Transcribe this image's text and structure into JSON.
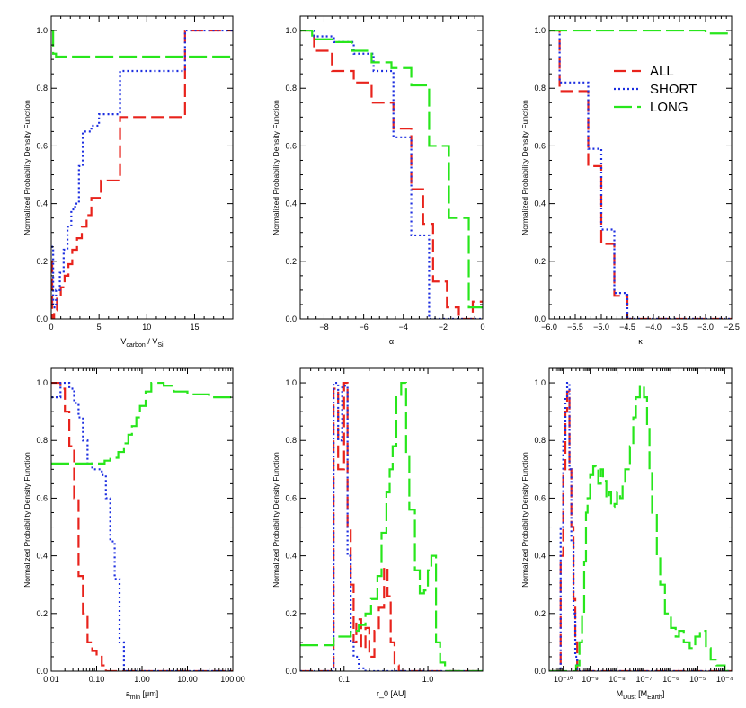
{
  "colors": {
    "ALL": "#e8231c",
    "SHORT": "#1c2ee0",
    "LONG": "#28e61c"
  },
  "legend": {
    "entries": [
      "ALL",
      "SHORT",
      "LONG"
    ],
    "placement": "top-right of top-right panel"
  },
  "chart_data": [
    {
      "type": "line",
      "step": true,
      "xscale": "linear",
      "title": "",
      "xlabel": "V_carbon / V_Si",
      "ylabel": "Normalized Probability Density Function",
      "xlim": [
        0,
        19
      ],
      "ylim": [
        0,
        1.05
      ],
      "xticks": [
        0,
        5,
        10,
        15
      ],
      "xticklabels": [
        "0",
        "5",
        "10",
        "15"
      ],
      "yticks": [
        0,
        0.2,
        0.4,
        0.6,
        0.8,
        1.0
      ],
      "yticklabels": [
        "0.0",
        "0.2",
        "0.4",
        "0.6",
        "0.8",
        "1.0"
      ],
      "series": [
        {
          "name": "ALL",
          "x": [
            0,
            0.1,
            0.3,
            0.6,
            1.0,
            1.4,
            1.8,
            2.2,
            2.7,
            3.2,
            3.7,
            4.2,
            5.2,
            6.2,
            7.2,
            14.0,
            19.0
          ],
          "y": [
            0.2,
            0.0,
            0.03,
            0.07,
            0.11,
            0.15,
            0.19,
            0.24,
            0.28,
            0.32,
            0.36,
            0.42,
            0.48,
            0.48,
            0.7,
            1.0,
            1.0
          ]
        },
        {
          "name": "SHORT",
          "x": [
            0,
            0.2,
            0.5,
            0.9,
            1.3,
            1.7,
            2.1,
            2.5,
            2.9,
            3.3,
            3.7,
            4.2,
            5.0,
            5.8,
            7.2,
            14.0,
            19.0
          ],
          "y": [
            0.25,
            0.04,
            0.1,
            0.16,
            0.24,
            0.32,
            0.38,
            0.4,
            0.53,
            0.65,
            0.65,
            0.67,
            0.71,
            0.71,
            0.86,
            1.0,
            1.0
          ]
        },
        {
          "name": "LONG",
          "x": [
            0,
            0.2,
            0.5,
            1.0,
            2.0,
            4.0,
            19.0
          ],
          "y": [
            1.0,
            0.92,
            0.91,
            0.91,
            0.91,
            0.91,
            0.91
          ]
        }
      ]
    },
    {
      "type": "line",
      "step": true,
      "xscale": "linear",
      "title": "",
      "xlabel": "α",
      "ylabel": "Normalized Probability Density Function",
      "xlim": [
        -9.2,
        0
      ],
      "ylim": [
        0,
        1.05
      ],
      "xticks": [
        -8,
        -6,
        -4,
        -2,
        0
      ],
      "xticklabels": [
        "−8",
        "−6",
        "−4",
        "−2",
        "0"
      ],
      "yticks": [
        0,
        0.2,
        0.4,
        0.6,
        0.8,
        1.0
      ],
      "yticklabels": [
        "0.0",
        "0.2",
        "0.4",
        "0.6",
        "0.8",
        "1.0"
      ],
      "series": [
        {
          "name": "ALL",
          "x": [
            -9.2,
            -8.5,
            -7.6,
            -6.5,
            -5.6,
            -4.5,
            -3.6,
            -3.0,
            -2.5,
            -1.8,
            -1.2,
            -0.5,
            0
          ],
          "y": [
            1.0,
            0.93,
            0.86,
            0.82,
            0.75,
            0.66,
            0.45,
            0.33,
            0.13,
            0.04,
            0.0,
            0.06,
            0.06
          ]
        },
        {
          "name": "SHORT",
          "x": [
            -9.2,
            -8.5,
            -7.5,
            -6.5,
            -5.5,
            -4.5,
            -3.6,
            -2.7,
            -1.8,
            0
          ],
          "y": [
            1.0,
            0.98,
            0.96,
            0.92,
            0.86,
            0.63,
            0.29,
            0.0,
            0.0,
            0.0
          ]
        },
        {
          "name": "LONG",
          "x": [
            -9.2,
            -8.6,
            -7.6,
            -6.6,
            -5.6,
            -4.6,
            -3.6,
            -2.7,
            -1.7,
            -0.7,
            0
          ],
          "y": [
            1.0,
            0.97,
            0.96,
            0.93,
            0.89,
            0.87,
            0.81,
            0.6,
            0.35,
            0.04,
            0.04
          ]
        }
      ]
    },
    {
      "type": "line",
      "step": true,
      "xscale": "linear",
      "title": "",
      "xlabel": "κ",
      "ylabel": "",
      "xlim": [
        -6.0,
        -2.5
      ],
      "ylim": [
        0,
        1.05
      ],
      "xticks": [
        -6.0,
        -5.5,
        -5.0,
        -4.5,
        -4.0,
        -3.5,
        -3.0,
        -2.5
      ],
      "xticklabels": [
        "−6.0",
        "−5.5",
        "−5.0",
        "−4.5",
        "−4.0",
        "−3.5",
        "−3.0",
        "−2.5"
      ],
      "yticks": [
        0,
        0.2,
        0.4,
        0.6,
        0.8,
        1.0
      ],
      "yticklabels": [
        "0.0",
        "0.2",
        "0.4",
        "0.6",
        "0.8",
        "1.0"
      ],
      "series": [
        {
          "name": "ALL",
          "x": [
            -6.0,
            -5.8,
            -5.5,
            -5.25,
            -5.0,
            -4.75,
            -4.5,
            -4.25,
            -4.0,
            -2.5
          ],
          "y": [
            1.0,
            0.79,
            0.79,
            0.53,
            0.26,
            0.08,
            0.0,
            0.0,
            0.0,
            0.0
          ]
        },
        {
          "name": "SHORT",
          "x": [
            -6.0,
            -5.8,
            -5.5,
            -5.25,
            -5.0,
            -4.75,
            -4.5,
            -4.25,
            -4.0,
            -2.5
          ],
          "y": [
            1.0,
            0.82,
            0.82,
            0.59,
            0.31,
            0.09,
            0.0,
            0.0,
            0.0,
            0.0
          ]
        },
        {
          "name": "LONG",
          "x": [
            -6.0,
            -4.5,
            -3.0,
            -2.5
          ],
          "y": [
            1.0,
            1.0,
            0.99,
            0.99
          ]
        }
      ]
    },
    {
      "type": "line",
      "step": true,
      "xscale": "log",
      "title": "",
      "xlabel": "a_min [μm]",
      "ylabel": "Normalized Probability Density Function",
      "xlim": [
        0.01,
        100
      ],
      "ylim": [
        0,
        1.05
      ],
      "xticks": [
        0.01,
        0.1,
        1,
        10,
        100
      ],
      "xticklabels": [
        "0.01",
        "0.10",
        "1.00",
        "10.00",
        "100.00"
      ],
      "yticks": [
        0,
        0.2,
        0.4,
        0.6,
        0.8,
        1.0
      ],
      "yticklabels": [
        "0.0",
        "0.2",
        "0.4",
        "0.6",
        "0.8",
        "1.0"
      ],
      "series": [
        {
          "name": "ALL",
          "x": [
            0.01,
            0.013,
            0.016,
            0.02,
            0.025,
            0.032,
            0.04,
            0.05,
            0.063,
            0.08,
            0.1,
            0.13,
            0.16,
            0.2,
            0.32,
            100
          ],
          "y": [
            1.0,
            1.0,
            0.98,
            0.9,
            0.78,
            0.6,
            0.33,
            0.2,
            0.1,
            0.07,
            0.05,
            0.02,
            0.0,
            0.0,
            0.0,
            0.0
          ]
        },
        {
          "name": "SHORT",
          "x": [
            0.01,
            0.016,
            0.025,
            0.032,
            0.04,
            0.05,
            0.063,
            0.08,
            0.1,
            0.13,
            0.16,
            0.2,
            0.25,
            0.32,
            0.4,
            100
          ],
          "y": [
            0.95,
            1.0,
            0.98,
            0.93,
            0.88,
            0.8,
            0.72,
            0.7,
            0.7,
            0.68,
            0.6,
            0.45,
            0.32,
            0.1,
            0.0,
            0.0
          ]
        },
        {
          "name": "LONG",
          "x": [
            0.01,
            0.05,
            0.1,
            0.15,
            0.2,
            0.3,
            0.4,
            0.5,
            0.6,
            0.75,
            0.9,
            1.2,
            1.6,
            2.0,
            3.0,
            5.0,
            10,
            30,
            100
          ],
          "y": [
            0.72,
            0.72,
            0.72,
            0.73,
            0.74,
            0.76,
            0.79,
            0.82,
            0.85,
            0.88,
            0.92,
            0.97,
            1.0,
            1.0,
            0.99,
            0.97,
            0.96,
            0.95,
            0.94
          ]
        }
      ]
    },
    {
      "type": "line",
      "step": true,
      "xscale": "log",
      "title": "",
      "xlabel": "r_0 [AU]",
      "ylabel": "Normalized Probability Density Function",
      "xlim": [
        0.03,
        4.5
      ],
      "ylim": [
        0,
        1.05
      ],
      "xticks": [
        0.1,
        1.0
      ],
      "xticklabels": [
        "0.1",
        "1.0"
      ],
      "yticks": [
        0,
        0.2,
        0.4,
        0.6,
        0.8,
        1.0
      ],
      "yticklabels": [
        "0.0",
        "0.2",
        "0.4",
        "0.6",
        "0.8",
        "1.0"
      ],
      "series": [
        {
          "name": "ALL",
          "x": [
            0.03,
            0.075,
            0.085,
            0.1,
            0.11,
            0.12,
            0.13,
            0.14,
            0.16,
            0.18,
            0.2,
            0.23,
            0.26,
            0.3,
            0.33,
            0.36,
            0.4,
            0.45,
            4.5
          ],
          "y": [
            0.0,
            0.98,
            0.7,
            1.0,
            0.5,
            0.3,
            0.1,
            0.18,
            0.08,
            0.15,
            0.05,
            0.14,
            0.22,
            0.36,
            0.26,
            0.1,
            0.02,
            0.0,
            0.0
          ]
        },
        {
          "name": "SHORT",
          "x": [
            0.03,
            0.075,
            0.085,
            0.095,
            0.11,
            0.12,
            0.13,
            0.15,
            0.18,
            4.5
          ],
          "y": [
            0.0,
            1.0,
            0.8,
            0.99,
            0.4,
            0.1,
            0.05,
            0.01,
            0.0,
            0.0
          ]
        },
        {
          "name": "LONG",
          "x": [
            0.03,
            0.075,
            0.12,
            0.15,
            0.18,
            0.21,
            0.25,
            0.28,
            0.32,
            0.35,
            0.38,
            0.42,
            0.48,
            0.55,
            0.6,
            0.7,
            0.8,
            0.9,
            1.0,
            1.1,
            1.25,
            1.4,
            1.6,
            2.0,
            4.5
          ],
          "y": [
            0.09,
            0.12,
            0.14,
            0.16,
            0.2,
            0.25,
            0.33,
            0.48,
            0.62,
            0.7,
            0.78,
            0.95,
            1.0,
            0.75,
            0.56,
            0.35,
            0.27,
            0.28,
            0.35,
            0.4,
            0.1,
            0.03,
            0.0,
            0.0,
            0.0
          ]
        }
      ]
    },
    {
      "type": "line",
      "step": true,
      "xscale": "log",
      "title": "",
      "xlabel": "M_Dust [M_Earth]",
      "ylabel": "",
      "xlim": [
        3e-11,
        0.00018
      ],
      "ylim": [
        0,
        1.05
      ],
      "xticks": [
        1e-10,
        1e-09,
        1e-08,
        1e-07,
        1e-06,
        1e-05,
        0.0001
      ],
      "xticklabels": [
        "10⁻¹⁰",
        "10⁻⁹",
        "10⁻⁸",
        "10⁻⁷",
        "10⁻⁶",
        "10⁻⁵",
        "10⁻⁴"
      ],
      "yticks": [
        0,
        0.2,
        0.4,
        0.6,
        0.8,
        1.0
      ],
      "yticklabels": [
        "0.0",
        "0.2",
        "0.4",
        "0.6",
        "0.8",
        "1.0"
      ],
      "series": [
        {
          "name": "ALL",
          "x": [
            3e-11,
            8e-11,
            1e-10,
            1.2e-10,
            1.4e-10,
            1.7e-10,
            2e-10,
            2.4e-10,
            2.8e-10,
            3.3e-10,
            3e-09,
            0.00018
          ],
          "y": [
            0.0,
            0.4,
            0.7,
            0.9,
            0.97,
            0.7,
            0.5,
            0.25,
            0.1,
            0.0,
            0.0,
            0.0
          ]
        },
        {
          "name": "SHORT",
          "x": [
            3e-11,
            8e-11,
            1e-10,
            1.2e-10,
            1.4e-10,
            1.7e-10,
            2e-10,
            2.4e-10,
            2.8e-10,
            3.3e-10,
            0.00018
          ],
          "y": [
            0.0,
            0.5,
            0.8,
            0.95,
            1.0,
            0.7,
            0.45,
            0.2,
            0.05,
            0.0,
            0.0
          ]
        },
        {
          "name": "LONG",
          "x": [
            3e-11,
            2.5e-10,
            3e-10,
            4e-10,
            5e-10,
            6e-10,
            7e-10,
            8e-10,
            1e-09,
            1.3e-09,
            1.6e-09,
            2e-09,
            2.5e-09,
            3e-09,
            4e-09,
            5e-09,
            6e-09,
            8e-09,
            1e-08,
            1.3e-08,
            1.6e-08,
            2e-08,
            3e-08,
            4e-08,
            5e-08,
            7e-08,
            1e-07,
            1.3e-07,
            1.6e-07,
            2e-07,
            3e-07,
            4e-07,
            6e-07,
            1e-06,
            1.5e-06,
            2e-06,
            3e-06,
            5e-06,
            8e-06,
            1.2e-05,
            2e-05,
            3e-05,
            5e-05,
            0.0001,
            0.00018
          ],
          "y": [
            0.0,
            0.0,
            0.02,
            0.1,
            0.2,
            0.38,
            0.55,
            0.6,
            0.68,
            0.71,
            0.7,
            0.65,
            0.7,
            0.66,
            0.6,
            0.62,
            0.57,
            0.58,
            0.62,
            0.6,
            0.65,
            0.7,
            0.78,
            0.88,
            0.95,
            0.99,
            0.95,
            0.85,
            0.7,
            0.55,
            0.4,
            0.3,
            0.2,
            0.15,
            0.12,
            0.14,
            0.1,
            0.08,
            0.12,
            0.14,
            0.08,
            0.04,
            0.02,
            0.0,
            0.0
          ]
        }
      ]
    }
  ]
}
